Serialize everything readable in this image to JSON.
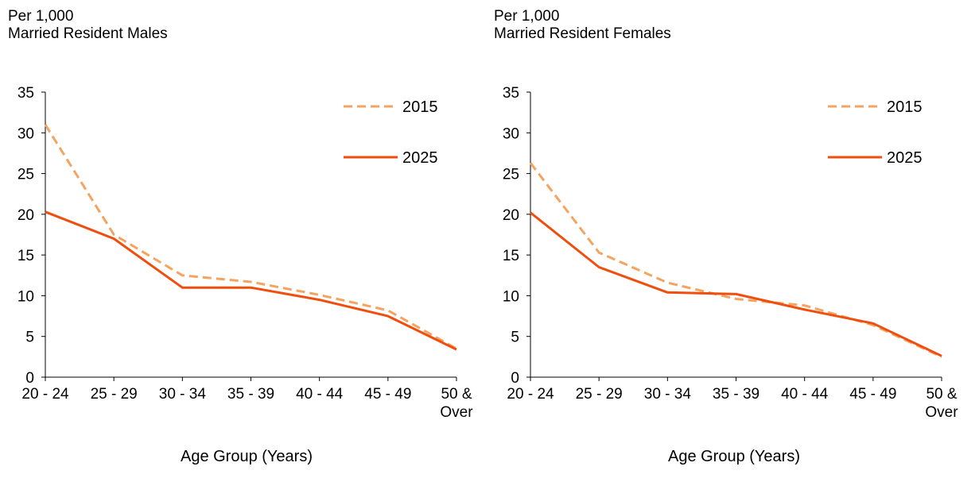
{
  "charts": [
    {
      "chart_data": {
        "type": "line",
        "ylabel_line1": "Per 1,000",
        "ylabel_line2": "Married Resident Males",
        "xlabel": "Age Group (Years)",
        "categories": [
          [
            "20 - 24"
          ],
          [
            "25 - 29"
          ],
          [
            "30 - 34"
          ],
          [
            "35 - 39"
          ],
          [
            "40 - 44"
          ],
          [
            "45 - 49"
          ],
          [
            "50 &",
            "Over"
          ]
        ],
        "ylim": [
          0,
          35
        ],
        "yticks": [
          0,
          5,
          10,
          15,
          20,
          25,
          30,
          35
        ],
        "legend": "top-right",
        "series": [
          {
            "name": "2015",
            "style": "dashed",
            "color": "#F4A460",
            "values": [
              31.0,
              17.5,
              12.5,
              11.7,
              10.1,
              8.2,
              3.5
            ]
          },
          {
            "name": "2025",
            "style": "solid",
            "color": "#F04E0E",
            "values": [
              20.3,
              17.0,
              11.0,
              11.0,
              9.5,
              7.5,
              3.4
            ]
          }
        ]
      }
    },
    {
      "chart_data": {
        "type": "line",
        "ylabel_line1": "Per 1,000",
        "ylabel_line2": "Married Resident Females",
        "xlabel": "Age Group (Years)",
        "categories": [
          [
            "20 - 24"
          ],
          [
            "25 - 29"
          ],
          [
            "30 - 34"
          ],
          [
            "35 - 39"
          ],
          [
            "40 - 44"
          ],
          [
            "45 - 49"
          ],
          [
            "50 &",
            "Over"
          ]
        ],
        "ylim": [
          0,
          35
        ],
        "yticks": [
          0,
          5,
          10,
          15,
          20,
          25,
          30,
          35
        ],
        "legend": "top-right",
        "series": [
          {
            "name": "2015",
            "style": "dashed",
            "color": "#F4A460",
            "values": [
              26.3,
              15.3,
              11.6,
              9.6,
              8.8,
              6.4,
              2.5
            ]
          },
          {
            "name": "2025",
            "style": "solid",
            "color": "#F04E0E",
            "values": [
              20.2,
              13.5,
              10.4,
              10.2,
              8.3,
              6.6,
              2.6
            ]
          }
        ]
      }
    }
  ]
}
